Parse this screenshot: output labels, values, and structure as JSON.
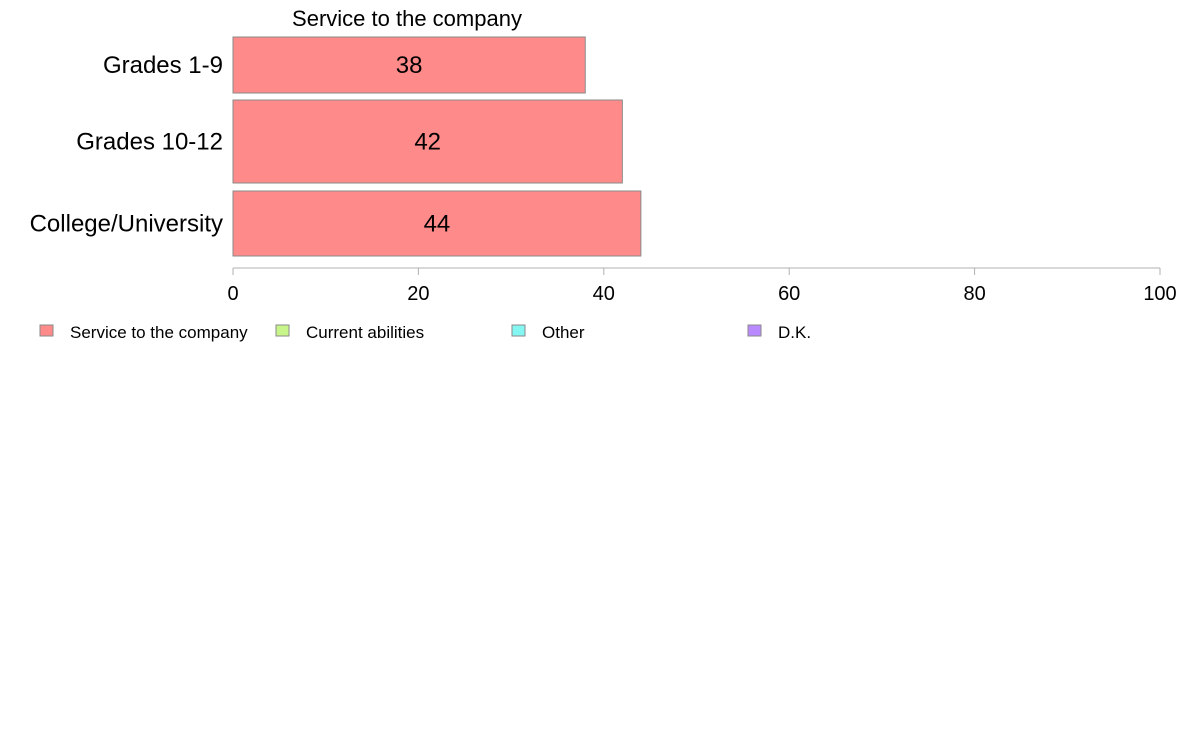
{
  "chart_data": {
    "type": "bar",
    "orientation": "horizontal",
    "stacked": true,
    "title": "Service to the company",
    "categories": [
      "Grades 1-9",
      "Grades 10-12",
      "College/University"
    ],
    "series": [
      {
        "name": "Service to the company",
        "values": [
          38,
          42,
          44
        ],
        "color": "#ff8a8a"
      },
      {
        "name": "Current abilities",
        "values": [
          null,
          null,
          null
        ],
        "color": "#c8f58a"
      },
      {
        "name": "Other",
        "values": [
          null,
          null,
          null
        ],
        "color": "#85f7f2"
      },
      {
        "name": "D.K.",
        "values": [
          null,
          null,
          null
        ],
        "color": "#b98aff"
      }
    ],
    "data_labels": [
      "38",
      "42",
      "44"
    ],
    "xlim": [
      0,
      100
    ],
    "xticks": [
      0,
      20,
      40,
      60,
      80,
      100
    ],
    "xlabel": "",
    "ylabel": "",
    "grid": false,
    "legend_position": "bottom"
  }
}
